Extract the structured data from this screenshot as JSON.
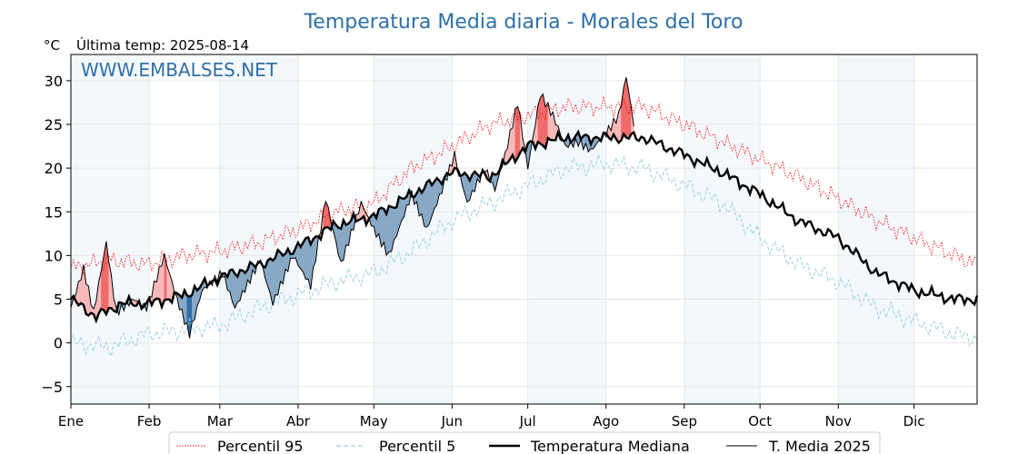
{
  "chart_data": {
    "type": "line",
    "title": "Temperatura Media diaria - Morales del Toro",
    "unit": "°C",
    "last_temp_label": "Última temp: 2025-08-14",
    "watermark": "WWW.EMBALSES.NET",
    "months": [
      "Ene",
      "Feb",
      "Mar",
      "Abr",
      "May",
      "Jun",
      "Jul",
      "Ago",
      "Sep",
      "Oct",
      "Nov",
      "Dic"
    ],
    "month_start_days": [
      0,
      31,
      59,
      90,
      120,
      151,
      181,
      212,
      243,
      273,
      304,
      334
    ],
    "x_range": [
      0,
      359
    ],
    "ylim": [
      -7,
      33
    ],
    "yticks": [
      -5,
      0,
      5,
      10,
      15,
      20,
      25,
      30
    ],
    "grid": true,
    "legend_position": "bottom-center",
    "series": [
      {
        "name": "Percentil 95",
        "color": "#ff0000",
        "style": "dotted",
        "anchors": [
          [
            0,
            8.5
          ],
          [
            15,
            9.5
          ],
          [
            30,
            9.0
          ],
          [
            45,
            10.0
          ],
          [
            59,
            10.5
          ],
          [
            75,
            11.5
          ],
          [
            90,
            13.0
          ],
          [
            105,
            15.0
          ],
          [
            120,
            16.0
          ],
          [
            135,
            20.0
          ],
          [
            151,
            22.5
          ],
          [
            166,
            25.0
          ],
          [
            181,
            26.0
          ],
          [
            196,
            27.0
          ],
          [
            212,
            27.0
          ],
          [
            227,
            27.0
          ],
          [
            243,
            25.0
          ],
          [
            258,
            23.0
          ],
          [
            273,
            21.0
          ],
          [
            288,
            19.0
          ],
          [
            304,
            16.5
          ],
          [
            319,
            14.0
          ],
          [
            334,
            12.0
          ],
          [
            350,
            10.0
          ],
          [
            359,
            9.0
          ]
        ]
      },
      {
        "name": "Percentil 5",
        "color": "#9fcfe0",
        "style": "dashed",
        "anchors": [
          [
            0,
            0.0
          ],
          [
            15,
            -0.5
          ],
          [
            30,
            1.0
          ],
          [
            45,
            1.5
          ],
          [
            59,
            2.0
          ],
          [
            75,
            4.0
          ],
          [
            90,
            5.5
          ],
          [
            105,
            7.0
          ],
          [
            120,
            8.0
          ],
          [
            135,
            10.5
          ],
          [
            151,
            14.0
          ],
          [
            166,
            16.0
          ],
          [
            181,
            18.0
          ],
          [
            196,
            20.0
          ],
          [
            212,
            20.5
          ],
          [
            227,
            20.0
          ],
          [
            243,
            18.0
          ],
          [
            258,
            16.0
          ],
          [
            273,
            12.0
          ],
          [
            288,
            9.0
          ],
          [
            304,
            7.0
          ],
          [
            319,
            4.0
          ],
          [
            334,
            2.5
          ],
          [
            350,
            1.0
          ],
          [
            359,
            0.5
          ]
        ]
      },
      {
        "name": "Temperatura Mediana",
        "color": "#000000",
        "style": "solid-bold",
        "anchors": [
          [
            0,
            5.0
          ],
          [
            10,
            3.0
          ],
          [
            20,
            4.5
          ],
          [
            31,
            4.5
          ],
          [
            45,
            5.5
          ],
          [
            59,
            7.5
          ],
          [
            75,
            9.0
          ],
          [
            90,
            11.0
          ],
          [
            105,
            13.5
          ],
          [
            120,
            14.5
          ],
          [
            135,
            17.0
          ],
          [
            151,
            19.5
          ],
          [
            166,
            19.0
          ],
          [
            181,
            22.5
          ],
          [
            196,
            23.5
          ],
          [
            212,
            23.5
          ],
          [
            227,
            23.5
          ],
          [
            243,
            21.5
          ],
          [
            258,
            19.5
          ],
          [
            273,
            17.0
          ],
          [
            288,
            14.0
          ],
          [
            304,
            12.0
          ],
          [
            319,
            8.0
          ],
          [
            334,
            6.0
          ],
          [
            350,
            5.0
          ],
          [
            359,
            5.0
          ]
        ]
      },
      {
        "name": "T. Media 2025",
        "color": "#000000",
        "style": "solid-thin",
        "anchors": [
          [
            0,
            4.0
          ],
          [
            5,
            8.5
          ],
          [
            9,
            3.5
          ],
          [
            14,
            11.5
          ],
          [
            18,
            3.5
          ],
          [
            25,
            5.0
          ],
          [
            30,
            4.0
          ],
          [
            37,
            10.0
          ],
          [
            42,
            5.0
          ],
          [
            47,
            1.0
          ],
          [
            52,
            6.0
          ],
          [
            60,
            8.0
          ],
          [
            65,
            4.0
          ],
          [
            75,
            9.5
          ],
          [
            80,
            4.5
          ],
          [
            88,
            10.0
          ],
          [
            95,
            6.5
          ],
          [
            101,
            16.5
          ],
          [
            107,
            9.0
          ],
          [
            115,
            16.0
          ],
          [
            120,
            13.0
          ],
          [
            126,
            10.0
          ],
          [
            135,
            17.0
          ],
          [
            141,
            13.0
          ],
          [
            147,
            17.5
          ],
          [
            152,
            21.5
          ],
          [
            157,
            16.0
          ],
          [
            164,
            20.0
          ],
          [
            168,
            17.5
          ],
          [
            172,
            21.5
          ],
          [
            177,
            27.5
          ],
          [
            181,
            20.0
          ],
          [
            186,
            28.5
          ],
          [
            191,
            26.0
          ],
          [
            196,
            22.5
          ],
          [
            201,
            23.0
          ],
          [
            206,
            22.0
          ],
          [
            212,
            24.0
          ],
          [
            217,
            26.0
          ],
          [
            220,
            30.5
          ],
          [
            223,
            25.0
          ]
        ]
      }
    ]
  }
}
